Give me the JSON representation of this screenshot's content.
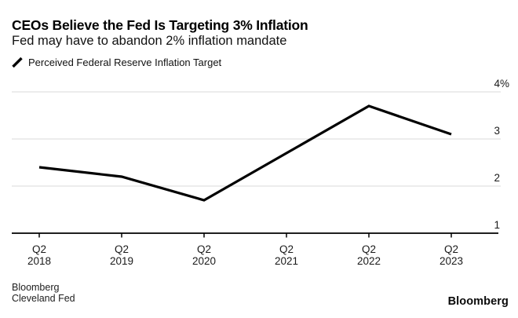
{
  "header": {
    "title": "CEOs Believe the Fed Is Targeting 3% Inflation",
    "subtitle": "Fed may have to abandon 2% inflation mandate",
    "legend": {
      "label": "Perceived Federal Reserve Inflation Target",
      "marker": "diagonal-line",
      "color": "#000000"
    }
  },
  "chart_data": {
    "type": "line",
    "title": "CEOs Believe the Fed Is Targeting 3% Inflation",
    "subtitle": "Fed may have to abandon 2% inflation mandate",
    "categories": [
      [
        "Q2",
        "2018"
      ],
      [
        "Q2",
        "2019"
      ],
      [
        "Q2",
        "2020"
      ],
      [
        "Q2",
        "2021"
      ],
      [
        "Q2",
        "2022"
      ],
      [
        "Q2",
        "2023"
      ]
    ],
    "series": [
      {
        "name": "Perceived Federal Reserve Inflation Target",
        "color": "#000000",
        "values": [
          2.4,
          2.2,
          1.7,
          2.7,
          3.7,
          3.1
        ]
      }
    ],
    "xlabel": "",
    "ylabel": "",
    "y_axis": {
      "side": "right",
      "range": [
        1,
        4
      ],
      "ticks": [
        1,
        2,
        3,
        4
      ],
      "tick_labels": [
        "1",
        "2",
        "3",
        "4%"
      ]
    },
    "grid": "horizontal",
    "legend_position": "top-left"
  },
  "footer": {
    "source_line1": "Bloomberg",
    "source_line2": "Cleveland Fed",
    "brand": "Bloomberg"
  },
  "colors": {
    "background": "#ffffff",
    "text": "#000000",
    "axis_label": "#1a1a1a",
    "grid": "#d9d9d9",
    "axis": "#000000",
    "series_line": "#000000"
  }
}
